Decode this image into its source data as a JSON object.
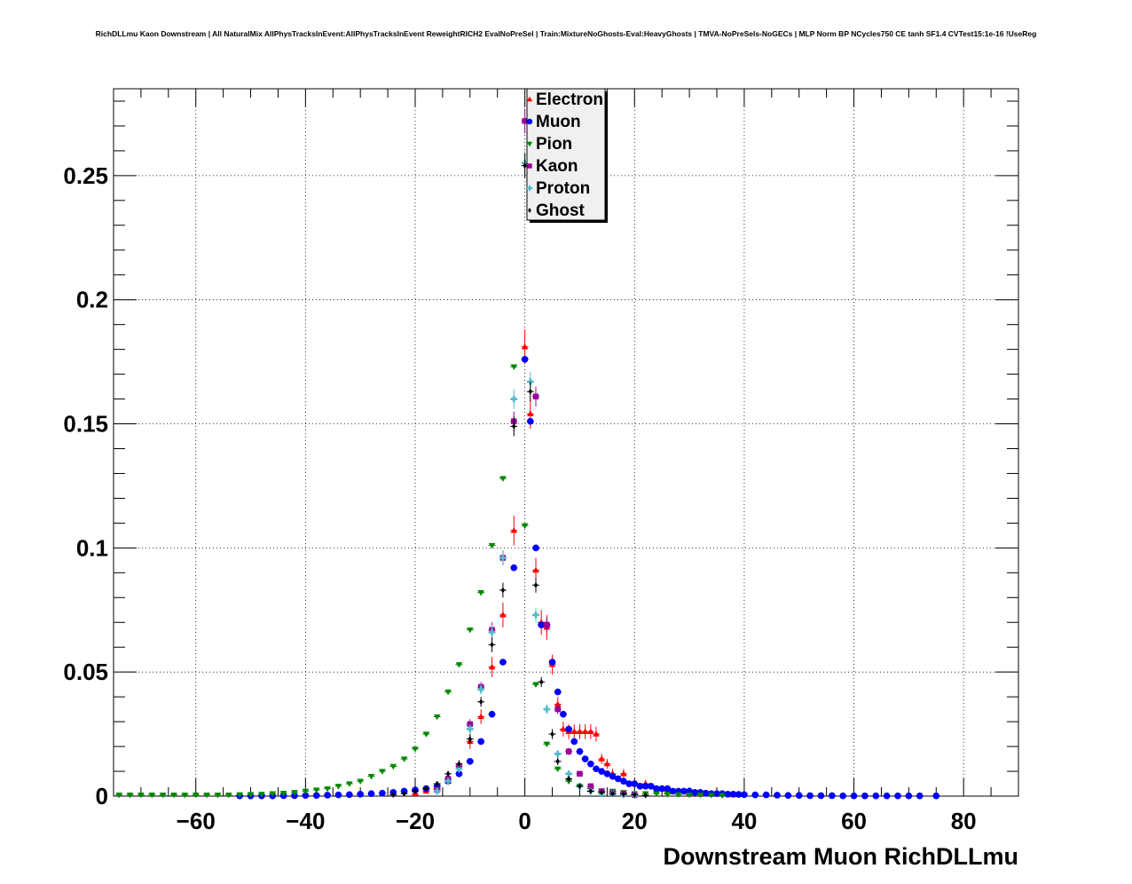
{
  "chart_data": {
    "type": "scatter",
    "title": "RichDLLmu Kaon Downstream | All NaturalMix AllPhysTracksInEvent:AllPhysTracksInEvent ReweightRICH2 EvalNoPreSel | Train:MixtureNoGhosts-Eval:HeavyGhosts | TMVA-NoPreSels-NoGECs | MLP Norm BP NCycles750 CE tanh SF1.4 CVTest15:1e-16 !UseReg",
    "xlabel": "Downstream Muon RichDLLmu",
    "ylabel": "",
    "xlim": [
      -75,
      90
    ],
    "ylim": [
      0,
      0.285
    ],
    "xticks": [
      -60,
      -40,
      -20,
      0,
      20,
      40,
      60,
      80
    ],
    "xtick_labels": [
      "−60",
      "−40",
      "−20",
      "0",
      "20",
      "40",
      "60",
      "80"
    ],
    "yticks": [
      0,
      0.05,
      0.1,
      0.15,
      0.2,
      0.25
    ],
    "ytick_labels": [
      "0",
      "0.05",
      "0.1",
      "0.15",
      "0.2",
      "0.25"
    ],
    "grid": true,
    "legend_position": "top-center",
    "series": [
      {
        "name": "Electron",
        "color": "#ff0000",
        "marker": "triangle-up",
        "x": [
          -20,
          -18,
          -16,
          -14,
          -12,
          -10,
          -8,
          -6,
          -4,
          -2,
          0,
          1,
          2,
          3,
          4,
          5,
          6,
          7,
          8,
          9,
          10,
          11,
          12,
          13,
          14,
          15,
          16,
          18,
          20,
          22,
          24,
          26,
          28,
          30,
          32,
          34,
          36,
          38
        ],
        "y": [
          0.001,
          0.002,
          0.003,
          0.006,
          0.012,
          0.022,
          0.032,
          0.052,
          0.073,
          0.107,
          0.181,
          0.154,
          0.091,
          0.07,
          0.068,
          0.053,
          0.037,
          0.027,
          0.026,
          0.026,
          0.026,
          0.026,
          0.026,
          0.025,
          0.015,
          0.013,
          0.009,
          0.009,
          0.005,
          0.005,
          0.003,
          0.002,
          0.002,
          0.001,
          0.001,
          0.001,
          0.001,
          0.0005
        ],
        "yerr": [
          0.0005,
          0.0008,
          0.001,
          0.0015,
          0.002,
          0.003,
          0.003,
          0.004,
          0.005,
          0.006,
          0.007,
          0.006,
          0.005,
          0.005,
          0.005,
          0.004,
          0.003,
          0.003,
          0.003,
          0.003,
          0.003,
          0.003,
          0.003,
          0.003,
          0.002,
          0.002,
          0.002,
          0.002,
          0.0015,
          0.0015,
          0.001,
          0.001,
          0.001,
          0.0008,
          0.0008,
          0.0008,
          0.0008,
          0.0005
        ]
      },
      {
        "name": "Muon",
        "color": "#0000ff",
        "marker": "circle",
        "x": [
          -52,
          -50,
          -48,
          -46,
          -44,
          -42,
          -40,
          -38,
          -36,
          -34,
          -32,
          -30,
          -28,
          -26,
          -24,
          -22,
          -20,
          -18,
          -16,
          -14,
          -12,
          -10,
          -8,
          -6,
          -4,
          -2,
          0,
          1,
          2,
          3,
          4,
          5,
          6,
          7,
          8,
          9,
          10,
          11,
          12,
          13,
          14,
          15,
          16,
          17,
          18,
          19,
          20,
          21,
          22,
          23,
          24,
          25,
          26,
          27,
          28,
          29,
          30,
          31,
          32,
          33,
          34,
          35,
          36,
          37,
          38,
          39,
          40,
          42,
          44,
          46,
          48,
          50,
          52,
          54,
          56,
          58,
          60,
          62,
          64,
          66,
          68,
          70,
          72,
          75
        ],
        "y": [
          0.0001,
          0.0001,
          0.0001,
          0.0001,
          0.0002,
          0.0002,
          0.0003,
          0.0003,
          0.0004,
          0.0005,
          0.0006,
          0.0008,
          0.001,
          0.0012,
          0.0015,
          0.002,
          0.0025,
          0.003,
          0.004,
          0.006,
          0.009,
          0.014,
          0.022,
          0.033,
          0.054,
          0.092,
          0.176,
          0.151,
          0.1,
          0.069,
          0.069,
          0.054,
          0.042,
          0.033,
          0.027,
          0.022,
          0.018,
          0.015,
          0.013,
          0.011,
          0.01,
          0.009,
          0.008,
          0.007,
          0.006,
          0.005,
          0.005,
          0.004,
          0.004,
          0.004,
          0.003,
          0.003,
          0.003,
          0.002,
          0.002,
          0.002,
          0.002,
          0.0015,
          0.0015,
          0.0012,
          0.001,
          0.001,
          0.001,
          0.0008,
          0.0008,
          0.0007,
          0.0006,
          0.0005,
          0.0005,
          0.0004,
          0.0003,
          0.0003,
          0.0002,
          0.0002,
          0.0002,
          0.0001,
          0.0001,
          0.0001,
          0.0001,
          0.0001,
          0.0001,
          0.0001,
          0.0001,
          0.0001
        ],
        "yerr": []
      },
      {
        "name": "Pion",
        "color": "#008800",
        "marker": "triangle-down",
        "x": [
          -74,
          -72,
          -70,
          -68,
          -66,
          -64,
          -62,
          -60,
          -58,
          -56,
          -54,
          -52,
          -50,
          -48,
          -46,
          -44,
          -42,
          -40,
          -38,
          -36,
          -34,
          -32,
          -30,
          -28,
          -26,
          -24,
          -22,
          -20,
          -18,
          -16,
          -14,
          -12,
          -10,
          -8,
          -6,
          -4,
          -2,
          0,
          2,
          4,
          6,
          8,
          10,
          12,
          14,
          16,
          18,
          20,
          22,
          24,
          26,
          28,
          30,
          32,
          34,
          36
        ],
        "y": [
          0.0005,
          0.0005,
          0.0005,
          0.0005,
          0.0005,
          0.0005,
          0.0005,
          0.0005,
          0.0005,
          0.0005,
          0.0005,
          0.0006,
          0.0007,
          0.0008,
          0.001,
          0.0012,
          0.0015,
          0.002,
          0.0025,
          0.003,
          0.004,
          0.005,
          0.006,
          0.008,
          0.01,
          0.012,
          0.015,
          0.019,
          0.025,
          0.032,
          0.042,
          0.053,
          0.067,
          0.082,
          0.101,
          0.128,
          0.173,
          0.109,
          0.045,
          0.021,
          0.011,
          0.006,
          0.004,
          0.003,
          0.002,
          0.002,
          0.0015,
          0.001,
          0.001,
          0.001,
          0.0008,
          0.0006,
          0.0005,
          0.0005,
          0.0004,
          0.0003
        ],
        "yerr": []
      },
      {
        "name": "Kaon",
        "color": "#990099",
        "marker": "square",
        "x": [
          -16,
          -14,
          -12,
          -10,
          -8,
          -6,
          -4,
          -2,
          0,
          2,
          4,
          6,
          8,
          10,
          12,
          14,
          16,
          18,
          20
        ],
        "y": [
          0.0025,
          0.007,
          0.012,
          0.029,
          0.044,
          0.067,
          0.096,
          0.151,
          0.272,
          0.161,
          0.069,
          0.035,
          0.018,
          0.009,
          0.004,
          0.002,
          0.0015,
          0.001,
          0.0005
        ],
        "yerr": [
          0.0005,
          0.001,
          0.0015,
          0.002,
          0.002,
          0.003,
          0.003,
          0.004,
          0.005,
          0.004,
          0.003,
          0.002,
          0.0015,
          0.001,
          0.001,
          0.0005,
          0.0005,
          0.0005,
          0.0003
        ]
      },
      {
        "name": "Proton",
        "color": "#55bbcc",
        "marker": "cross",
        "x": [
          -16,
          -14,
          -12,
          -10,
          -8,
          -6,
          -4,
          -2,
          0,
          1,
          2,
          4,
          6,
          8,
          10,
          12,
          14,
          16,
          18,
          20
        ],
        "y": [
          0.002,
          0.006,
          0.011,
          0.027,
          0.043,
          0.066,
          0.096,
          0.16,
          0.255,
          0.167,
          0.073,
          0.035,
          0.017,
          0.009,
          0.004,
          0.002,
          0.001,
          0.001,
          0.0005,
          0.0003
        ],
        "yerr": [
          0.0005,
          0.001,
          0.0015,
          0.002,
          0.002,
          0.003,
          0.003,
          0.004,
          0.005,
          0.004,
          0.003,
          0.002,
          0.0015,
          0.001,
          0.001,
          0.0005,
          0.0005,
          0.0005,
          0.0003,
          0.0003
        ]
      },
      {
        "name": "Ghost",
        "color": "#000000",
        "marker": "diamond",
        "x": [
          -24,
          -22,
          -20,
          -18,
          -16,
          -14,
          -12,
          -10,
          -8,
          -6,
          -4,
          -2,
          0,
          1,
          2,
          3,
          5,
          6,
          8,
          10,
          12,
          14,
          16,
          18,
          20,
          22
        ],
        "y": [
          0.0005,
          0.001,
          0.002,
          0.003,
          0.005,
          0.009,
          0.013,
          0.023,
          0.038,
          0.061,
          0.083,
          0.149,
          0.254,
          0.163,
          0.085,
          0.046,
          0.025,
          0.014,
          0.007,
          0.004,
          0.002,
          0.0015,
          0.001,
          0.0008,
          0.0005,
          0.0003
        ],
        "yerr": [
          0.0003,
          0.0004,
          0.0005,
          0.0007,
          0.001,
          0.0012,
          0.0015,
          0.002,
          0.002,
          0.003,
          0.003,
          0.004,
          0.005,
          0.004,
          0.003,
          0.002,
          0.002,
          0.0015,
          0.001,
          0.001,
          0.0005,
          0.0005,
          0.0004,
          0.0004,
          0.0003,
          0.0002
        ]
      }
    ]
  }
}
